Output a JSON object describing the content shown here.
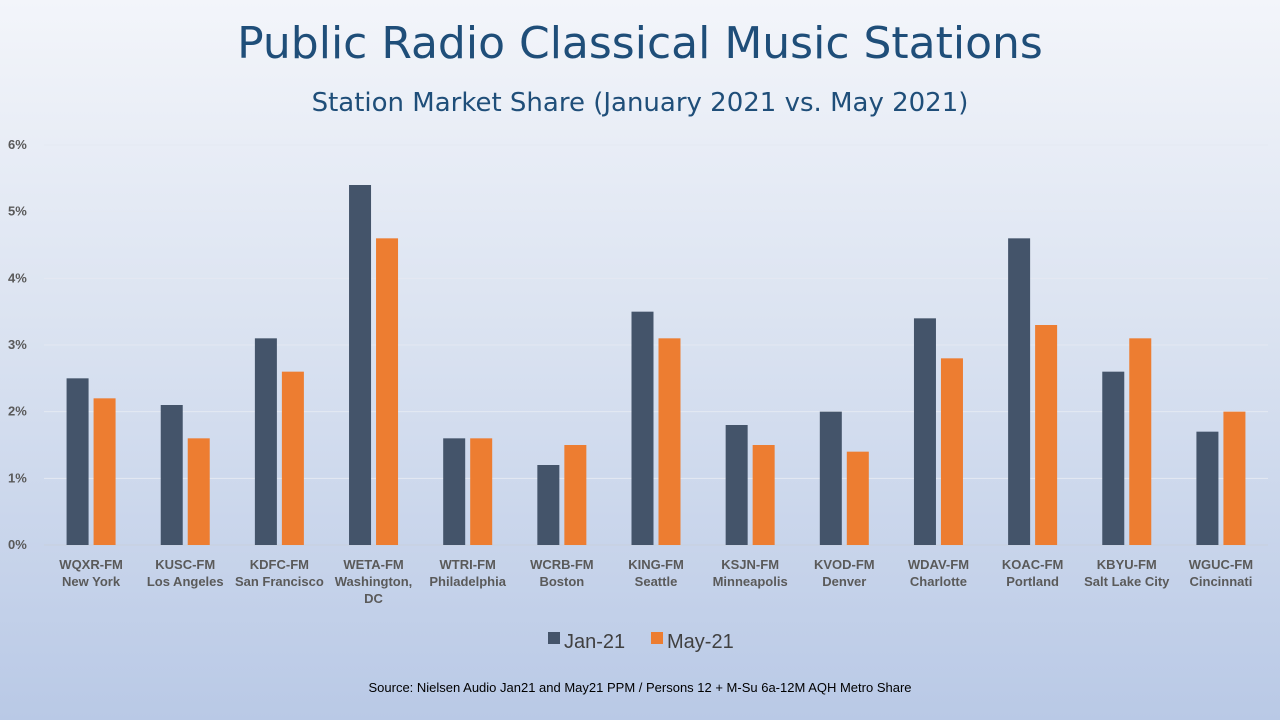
{
  "chart_data": {
    "type": "bar",
    "title": "Public Radio Classical Music Stations",
    "subtitle": "Station Market Share (January 2021 vs. May 2021)",
    "categories": [
      [
        "WQXR-FM",
        "New York"
      ],
      [
        "KUSC-FM",
        "Los Angeles"
      ],
      [
        "KDFC-FM",
        "San Francisco"
      ],
      [
        "WETA-FM",
        "Washington,",
        "DC"
      ],
      [
        "WTRI-FM",
        "Philadelphia"
      ],
      [
        "WCRB-FM",
        "Boston"
      ],
      [
        "KING-FM",
        "Seattle"
      ],
      [
        "KSJN-FM",
        "Minneapolis"
      ],
      [
        "KVOD-FM",
        "Denver"
      ],
      [
        "WDAV-FM",
        "Charlotte"
      ],
      [
        "KOAC-FM",
        "Portland"
      ],
      [
        "KBYU-FM",
        "Salt Lake City"
      ],
      [
        "WGUC-FM",
        "Cincinnati"
      ]
    ],
    "series": [
      {
        "name": "Jan-21",
        "color": "#44546a",
        "values": [
          2.5,
          2.1,
          3.1,
          5.4,
          1.6,
          1.2,
          3.5,
          1.8,
          2.0,
          3.4,
          4.6,
          2.6,
          1.7
        ]
      },
      {
        "name": "May-21",
        "color": "#ed7d31",
        "values": [
          2.2,
          1.6,
          2.6,
          4.6,
          1.6,
          1.5,
          3.1,
          1.5,
          1.4,
          2.8,
          3.3,
          3.1,
          2.0
        ]
      }
    ],
    "ylim": [
      0,
      6
    ],
    "yticks": [
      0,
      1,
      2,
      3,
      4,
      5,
      6
    ],
    "ytick_suffix": "%",
    "grid": true,
    "legend": "bottom-center"
  },
  "source": "Source: Nielsen Audio Jan21 and May21 PPM / Persons 12 + M-Su 6a-12M AQH Metro Share"
}
